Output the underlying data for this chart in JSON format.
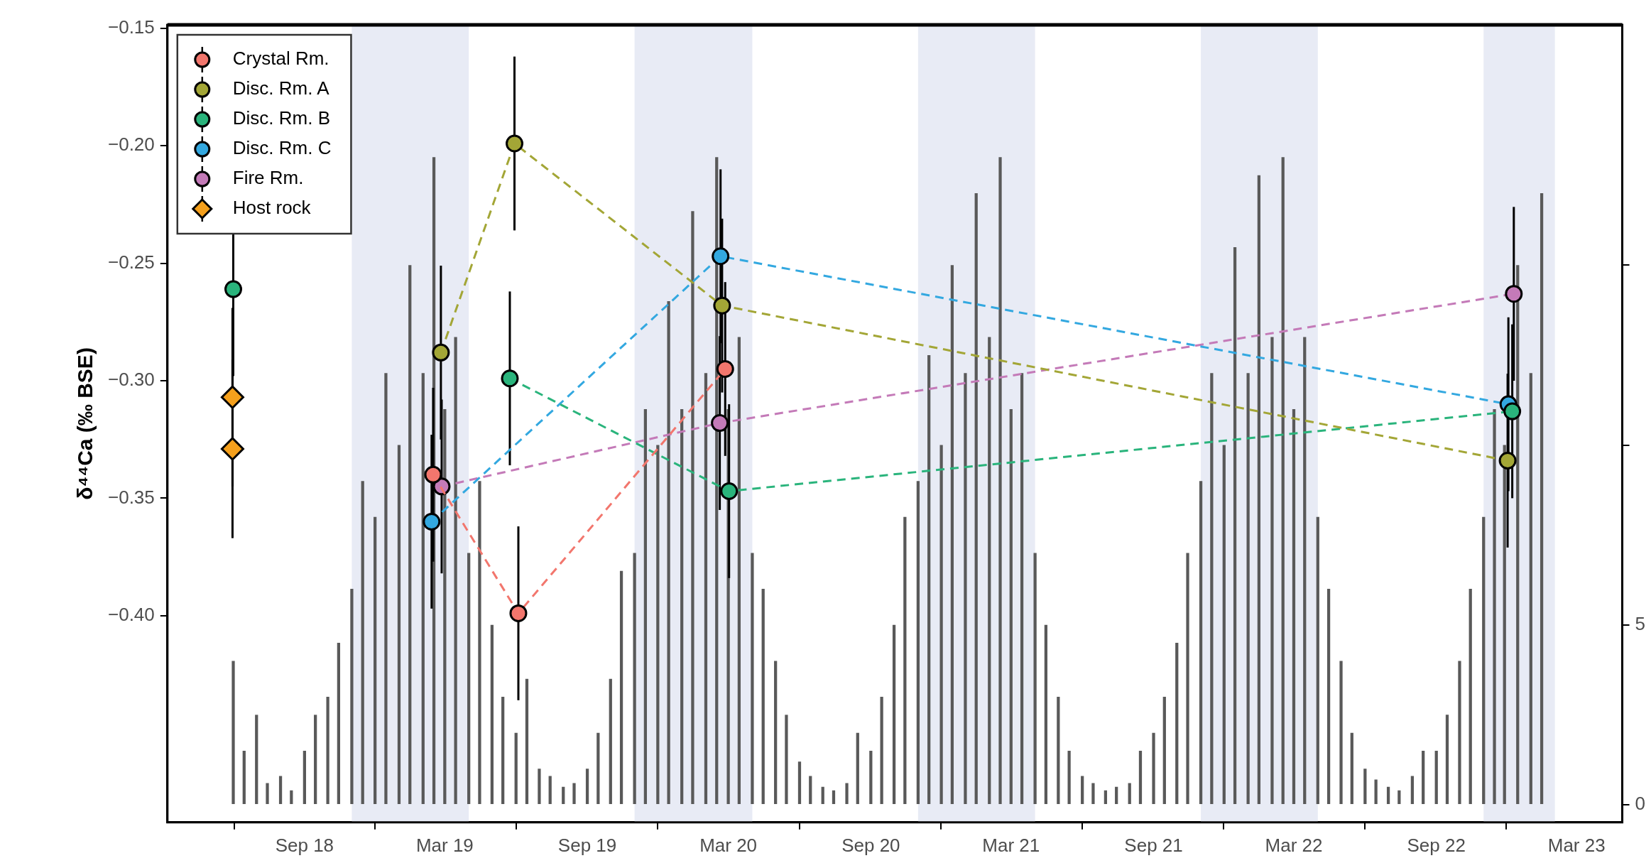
{
  "chart_data": {
    "type": "line",
    "ylabel": "δ⁴⁴Ca (‰ BSE)",
    "legend": "top left",
    "marker": "circle",
    "line_style": "dashed",
    "xlim": [
      "2018-03-08",
      "2023-04-29"
    ],
    "xticks": [
      {
        "value": "2018-09-01",
        "label": "Sep 18"
      },
      {
        "value": "2019-03-01",
        "label": "Mar 19"
      },
      {
        "value": "2019-09-01",
        "label": "Sep 19"
      },
      {
        "value": "2020-03-01",
        "label": "Mar 20"
      },
      {
        "value": "2020-09-01",
        "label": "Sep 20"
      },
      {
        "value": "2021-03-01",
        "label": "Mar 21"
      },
      {
        "value": "2021-09-01",
        "label": "Sep 21"
      },
      {
        "value": "2022-03-01",
        "label": "Mar 22"
      },
      {
        "value": "2022-09-01",
        "label": "Sep 22"
      },
      {
        "value": "2023-03-01",
        "label": "Mar 23"
      }
    ],
    "ylim": [
      -0.488,
      -0.1485
    ],
    "yticks": [
      {
        "value": -0.15,
        "label": "−0.15"
      },
      {
        "value": -0.2,
        "label": "−0.20"
      },
      {
        "value": -0.25,
        "label": "−0.25"
      },
      {
        "value": -0.3,
        "label": "−0.30"
      },
      {
        "value": -0.35,
        "label": "−0.35"
      },
      {
        "value": -0.4,
        "label": "−0.40"
      }
    ],
    "y2lim": [
      -0.49,
      21.68
    ],
    "y2ticks": [
      0,
      5,
      {
        "value": 10,
        "label": null
      },
      {
        "value": 15,
        "label": null
      }
    ],
    "bands": [
      {
        "axis": "x",
        "from": "2018-11-01",
        "to": "2019-04-01",
        "color": "#e8ebf5"
      },
      {
        "axis": "x",
        "from": "2019-11-01",
        "to": "2020-04-01",
        "color": "#e8ebf5"
      },
      {
        "axis": "x",
        "from": "2020-11-01",
        "to": "2021-04-01",
        "color": "#e8ebf5"
      },
      {
        "axis": "x",
        "from": "2021-11-01",
        "to": "2022-04-01",
        "color": "#e8ebf5"
      },
      {
        "axis": "x",
        "from": "2022-11-01",
        "to": "2023-02-01",
        "color": "#e8ebf5"
      }
    ],
    "series": [
      {
        "type": "bar",
        "axis": "y2",
        "color": "#595959",
        "x": [
          "2018-06-01",
          "2018-06-15",
          "2018-07-01",
          "2018-07-15",
          "2018-08-01",
          "2018-08-15",
          "2018-09-01",
          "2018-09-15",
          "2018-10-01",
          "2018-10-15",
          "2018-11-01",
          "2018-11-15",
          "2018-12-01",
          "2018-12-15",
          "2019-01-01",
          "2019-01-15",
          "2019-02-01",
          "2019-02-15",
          "2019-03-01",
          "2019-03-15",
          "2019-04-01",
          "2019-04-15",
          "2019-05-01",
          "2019-05-15",
          "2019-06-01",
          "2019-06-15",
          "2019-07-01",
          "2019-07-15",
          "2019-08-01",
          "2019-08-15",
          "2019-09-01",
          "2019-09-15",
          "2019-10-01",
          "2019-10-15",
          "2019-11-01",
          "2019-11-15",
          "2019-12-01",
          "2019-12-15",
          "2020-01-01",
          "2020-01-15",
          "2020-02-01",
          "2020-02-15",
          "2020-03-01",
          "2020-03-15",
          "2020-04-01",
          "2020-04-15",
          "2020-05-01",
          "2020-05-15",
          "2020-06-01",
          "2020-06-15",
          "2020-07-01",
          "2020-07-15",
          "2020-08-01",
          "2020-08-15",
          "2020-09-01",
          "2020-09-15",
          "2020-10-01",
          "2020-10-15",
          "2020-11-01",
          "2020-11-15",
          "2020-12-01",
          "2020-12-15",
          "2021-01-01",
          "2021-01-15",
          "2021-02-01",
          "2021-02-15",
          "2021-03-01",
          "2021-03-15",
          "2021-04-01",
          "2021-04-15",
          "2021-05-01",
          "2021-05-15",
          "2021-06-01",
          "2021-06-15",
          "2021-07-01",
          "2021-07-15",
          "2021-08-01",
          "2021-08-15",
          "2021-09-01",
          "2021-09-15",
          "2021-10-01",
          "2021-10-15",
          "2021-11-01",
          "2021-11-15",
          "2021-12-01",
          "2021-12-15",
          "2022-01-01",
          "2022-01-15",
          "2022-02-01",
          "2022-02-15",
          "2022-03-01",
          "2022-03-15",
          "2022-04-01",
          "2022-04-15",
          "2022-05-01",
          "2022-05-15",
          "2022-06-01",
          "2022-06-15",
          "2022-07-01",
          "2022-07-15",
          "2022-08-01",
          "2022-08-15",
          "2022-09-01",
          "2022-09-15",
          "2022-10-01",
          "2022-10-15",
          "2022-11-01",
          "2022-11-15",
          "2022-11-28",
          "2022-12-15",
          "2023-01-01",
          "2023-01-15"
        ],
        "values": [
          4,
          1.5,
          2.5,
          0.6,
          0.8,
          0.4,
          1.5,
          2.5,
          3,
          4.5,
          6,
          9,
          8,
          12,
          10,
          15,
          12,
          18,
          11,
          13,
          7,
          9,
          5,
          3,
          2,
          3.5,
          1,
          0.8,
          0.5,
          0.6,
          1,
          2,
          3.5,
          6.5,
          7,
          11,
          10,
          14,
          11,
          16.5,
          12,
          18,
          11,
          13,
          7,
          6,
          4,
          2.5,
          1.2,
          0.8,
          0.5,
          0.4,
          0.6,
          2,
          1.5,
          3,
          5,
          8,
          9,
          12.5,
          10,
          15,
          12,
          17,
          13,
          18,
          11,
          12,
          7,
          5,
          3,
          1.5,
          0.8,
          0.6,
          0.4,
          0.5,
          0.6,
          1.5,
          2,
          3,
          4.5,
          7,
          9,
          12,
          10,
          15.5,
          12,
          17.5,
          13,
          18,
          11,
          13,
          8,
          6,
          4,
          2,
          1,
          0.7,
          0.5,
          0.4,
          0.8,
          1.5,
          1.5,
          2.5,
          4,
          6,
          8,
          11,
          10,
          15,
          12,
          17
        ]
      },
      {
        "name": "Crystal Rm.",
        "color": "#f2766d",
        "x": [
          "2019-02-14",
          "2019-06-04",
          "2020-02-26"
        ],
        "values": [
          -0.34,
          -0.399,
          -0.295
        ],
        "errors": [
          0.037,
          0.037,
          0.037
        ]
      },
      {
        "name": "Disc. Rm. A",
        "color": "#a3a636",
        "x": [
          "2019-02-24",
          "2019-05-30",
          "2020-02-22",
          "2022-12-02"
        ],
        "values": [
          -0.288,
          -0.199,
          -0.268,
          -0.334
        ],
        "errors": [
          0.037,
          0.037,
          0.037,
          0.037
        ]
      },
      {
        "name": "Disc. Rm. B",
        "color": "#2ab47c",
        "x": [
          "2018-06-01",
          "2019-02-15",
          "2019-05-24",
          "2020-03-02",
          "2022-12-08"
        ],
        "values": [
          -0.261,
          null,
          -0.299,
          -0.347,
          -0.313
        ],
        "errors": [
          0.037,
          null,
          0.037,
          0.037,
          0.037
        ]
      },
      {
        "name": "Disc. Rm. C",
        "color": "#33a8e0",
        "x": [
          "2019-02-12",
          "2020-02-20",
          "2022-12-03"
        ],
        "values": [
          -0.36,
          -0.247,
          -0.31
        ],
        "errors": [
          0.037,
          0.037,
          0.037
        ]
      },
      {
        "name": "Fire Rm.",
        "color": "#c47ab8",
        "x": [
          "2019-02-25",
          "2020-02-19",
          "2022-12-10"
        ],
        "values": [
          -0.345,
          -0.318,
          -0.263
        ],
        "errors": [
          0.037,
          0.037,
          0.037
        ]
      },
      {
        "name": "Host rock",
        "type": "scatter",
        "marker": "diamond",
        "color": "#f5a01c",
        "x": [
          "2018-05-31",
          "2018-05-31"
        ],
        "values": [
          -0.307,
          -0.329
        ],
        "errors": [
          0.038,
          0.038
        ]
      }
    ]
  }
}
